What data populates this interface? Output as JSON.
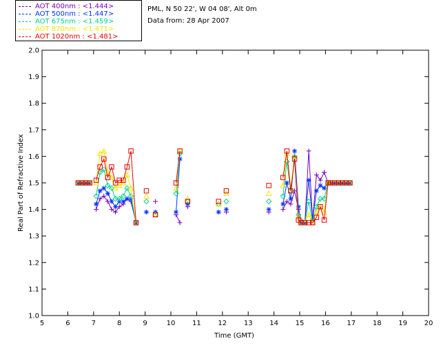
{
  "legend": [
    {
      "label": "AOT  400nm : <1.444>",
      "color": "#7a00b8"
    },
    {
      "label": "AOT  500nm : <1.447>",
      "color": "#0032ff"
    },
    {
      "label": "AOT  675nm : <1.459>",
      "color": "#00d28c"
    },
    {
      "label": "AOT  870nm : <1.471>",
      "color": "#f0e600"
    },
    {
      "label": "AOT 1020nm : <1.481>",
      "color": "#e60000"
    }
  ],
  "info": {
    "site": "PML, N 50 22', W 04 08', Alt 0m",
    "date": "Data from: 28 Apr 2007"
  },
  "chart_data": {
    "type": "line",
    "title": "",
    "xlabel": "Time (GMT)",
    "ylabel": "Real Part of Refractive Index",
    "xlim": [
      5,
      20
    ],
    "ylim": [
      1.0,
      2.0
    ],
    "xticks": [
      "5",
      "6",
      "7",
      "8",
      "9",
      "10",
      "11",
      "12",
      "13",
      "14",
      "15",
      "16",
      "17",
      "18",
      "19",
      "20"
    ],
    "yticks": [
      "1.0",
      "1.1",
      "1.2",
      "1.3",
      "1.4",
      "1.5",
      "1.6",
      "1.7",
      "1.8",
      "1.9",
      "2.0"
    ],
    "series": [
      {
        "name": "AOT  400nm : <1.444>",
        "color": "#7a00b8",
        "marker": "plus",
        "segments": [
          [
            [
              6.4,
              1.5
            ],
            [
              6.55,
              1.5
            ],
            [
              6.7,
              1.5
            ],
            [
              6.85,
              1.5
            ]
          ],
          [
            [
              7.1,
              1.4
            ],
            [
              7.25,
              1.44
            ],
            [
              7.4,
              1.45
            ],
            [
              7.55,
              1.43
            ],
            [
              7.7,
              1.4
            ],
            [
              7.85,
              1.39
            ],
            [
              8.0,
              1.41
            ],
            [
              8.15,
              1.42
            ],
            [
              8.3,
              1.44
            ],
            [
              8.45,
              1.43
            ],
            [
              8.65,
              1.35
            ]
          ],
          [
            [
              9.05,
              1.39
            ]
          ],
          [
            [
              9.4,
              1.43
            ]
          ],
          [
            [
              10.2,
              1.38
            ],
            [
              10.35,
              1.35
            ]
          ],
          [
            [
              10.65,
              1.41
            ]
          ],
          [
            [
              11.85,
              1.39
            ]
          ],
          [
            [
              12.15,
              1.39
            ]
          ],
          [
            [
              13.8,
              1.39
            ]
          ],
          [
            [
              14.35,
              1.4
            ],
            [
              14.5,
              1.43
            ],
            [
              14.65,
              1.42
            ],
            [
              14.8,
              1.47
            ],
            [
              14.95,
              1.4
            ],
            [
              15.05,
              1.36
            ],
            [
              15.2,
              1.35
            ],
            [
              15.35,
              1.62
            ],
            [
              15.5,
              1.36
            ],
            [
              15.65,
              1.53
            ],
            [
              15.8,
              1.51
            ],
            [
              15.95,
              1.54
            ],
            [
              16.1,
              1.5
            ],
            [
              16.2,
              1.5
            ],
            [
              16.35,
              1.5
            ],
            [
              16.5,
              1.5
            ],
            [
              16.65,
              1.5
            ],
            [
              16.8,
              1.5
            ],
            [
              16.95,
              1.5
            ]
          ]
        ]
      },
      {
        "name": "AOT  500nm : <1.447>",
        "color": "#0032ff",
        "marker": "star",
        "segments": [
          [
            [
              6.4,
              1.5
            ],
            [
              6.55,
              1.5
            ],
            [
              6.7,
              1.5
            ],
            [
              6.85,
              1.5
            ]
          ],
          [
            [
              7.1,
              1.42
            ],
            [
              7.25,
              1.47
            ],
            [
              7.4,
              1.48
            ],
            [
              7.55,
              1.46
            ],
            [
              7.7,
              1.43
            ],
            [
              7.85,
              1.41
            ],
            [
              8.0,
              1.43
            ],
            [
              8.15,
              1.43
            ],
            [
              8.3,
              1.44
            ],
            [
              8.45,
              1.44
            ],
            [
              8.65,
              1.35
            ]
          ],
          [
            [
              9.05,
              1.39
            ]
          ],
          [
            [
              9.4,
              1.39
            ]
          ],
          [
            [
              10.2,
              1.39
            ],
            [
              10.35,
              1.59
            ]
          ],
          [
            [
              10.65,
              1.42
            ]
          ],
          [
            [
              11.85,
              1.39
            ]
          ],
          [
            [
              12.15,
              1.4
            ]
          ],
          [
            [
              13.8,
              1.4
            ]
          ],
          [
            [
              14.35,
              1.42
            ],
            [
              14.5,
              1.5
            ],
            [
              14.65,
              1.44
            ],
            [
              14.8,
              1.62
            ],
            [
              14.95,
              1.41
            ],
            [
              15.05,
              1.35
            ],
            [
              15.2,
              1.35
            ],
            [
              15.35,
              1.51
            ],
            [
              15.5,
              1.36
            ],
            [
              15.65,
              1.47
            ],
            [
              15.8,
              1.49
            ],
            [
              15.95,
              1.48
            ],
            [
              16.1,
              1.5
            ],
            [
              16.2,
              1.5
            ],
            [
              16.35,
              1.5
            ],
            [
              16.5,
              1.5
            ],
            [
              16.65,
              1.5
            ],
            [
              16.8,
              1.5
            ],
            [
              16.95,
              1.5
            ]
          ]
        ]
      },
      {
        "name": "AOT  675nm : <1.459>",
        "color": "#00d28c",
        "marker": "diamond",
        "segments": [
          [
            [
              6.4,
              1.5
            ],
            [
              6.55,
              1.5
            ],
            [
              6.7,
              1.5
            ],
            [
              6.85,
              1.5
            ]
          ],
          [
            [
              7.1,
              1.45
            ],
            [
              7.25,
              1.54
            ],
            [
              7.4,
              1.55
            ],
            [
              7.55,
              1.49
            ],
            [
              7.7,
              1.48
            ],
            [
              7.85,
              1.44
            ],
            [
              8.0,
              1.44
            ],
            [
              8.15,
              1.45
            ],
            [
              8.3,
              1.48
            ],
            [
              8.45,
              1.45
            ],
            [
              8.65,
              1.35
            ]
          ],
          [
            [
              9.05,
              1.43
            ]
          ],
          [
            [
              9.4,
              1.38
            ]
          ],
          [
            [
              10.2,
              1.46
            ],
            [
              10.35,
              1.61
            ]
          ],
          [
            [
              10.65,
              1.43
            ]
          ],
          [
            [
              11.85,
              1.42
            ]
          ],
          [
            [
              12.15,
              1.43
            ]
          ],
          [
            [
              13.8,
              1.43
            ]
          ],
          [
            [
              14.35,
              1.45
            ],
            [
              14.5,
              1.58
            ],
            [
              14.65,
              1.47
            ],
            [
              14.8,
              1.6
            ],
            [
              14.95,
              1.38
            ],
            [
              15.05,
              1.35
            ],
            [
              15.2,
              1.35
            ],
            [
              15.35,
              1.43
            ],
            [
              15.5,
              1.35
            ],
            [
              15.65,
              1.41
            ],
            [
              15.8,
              1.44
            ],
            [
              15.95,
              1.44
            ],
            [
              16.1,
              1.5
            ],
            [
              16.2,
              1.5
            ],
            [
              16.35,
              1.5
            ],
            [
              16.5,
              1.5
            ],
            [
              16.65,
              1.5
            ],
            [
              16.8,
              1.5
            ],
            [
              16.95,
              1.5
            ]
          ]
        ]
      },
      {
        "name": "AOT  870nm : <1.471>",
        "color": "#f0e600",
        "marker": "triangle",
        "segments": [
          [
            [
              6.4,
              1.5
            ],
            [
              6.55,
              1.5
            ],
            [
              6.7,
              1.5
            ],
            [
              6.85,
              1.5
            ]
          ],
          [
            [
              7.1,
              1.5
            ],
            [
              7.25,
              1.61
            ],
            [
              7.4,
              1.62
            ],
            [
              7.55,
              1.54
            ],
            [
              7.7,
              1.52
            ],
            [
              7.85,
              1.48
            ],
            [
              8.0,
              1.49
            ],
            [
              8.15,
              1.5
            ],
            [
              8.3,
              1.53
            ],
            [
              8.45,
              1.48
            ],
            [
              8.65,
              1.35
            ]
          ],
          [
            [
              9.05,
              1.45
            ]
          ],
          [
            [
              9.4,
              1.38
            ]
          ],
          [
            [
              10.2,
              1.48
            ],
            [
              10.35,
              1.62
            ]
          ],
          [
            [
              10.65,
              1.44
            ]
          ],
          [
            [
              11.85,
              1.42
            ]
          ],
          [
            [
              12.15,
              1.46
            ]
          ],
          [
            [
              13.8,
              1.46
            ]
          ],
          [
            [
              14.35,
              1.49
            ],
            [
              14.5,
              1.61
            ],
            [
              14.65,
              1.48
            ],
            [
              14.8,
              1.6
            ],
            [
              14.95,
              1.37
            ],
            [
              15.05,
              1.35
            ],
            [
              15.2,
              1.35
            ],
            [
              15.35,
              1.38
            ],
            [
              15.5,
              1.35
            ],
            [
              15.65,
              1.39
            ],
            [
              15.8,
              1.41
            ],
            [
              15.95,
              1.39
            ],
            [
              16.1,
              1.5
            ],
            [
              16.2,
              1.5
            ],
            [
              16.35,
              1.5
            ],
            [
              16.5,
              1.5
            ],
            [
              16.65,
              1.5
            ],
            [
              16.8,
              1.5
            ],
            [
              16.95,
              1.5
            ]
          ]
        ]
      },
      {
        "name": "AOT 1020nm : <1.481>",
        "color": "#e60000",
        "marker": "square",
        "segments": [
          [
            [
              6.4,
              1.5
            ],
            [
              6.55,
              1.5
            ],
            [
              6.7,
              1.5
            ],
            [
              6.85,
              1.5
            ]
          ],
          [
            [
              7.1,
              1.51
            ],
            [
              7.25,
              1.56
            ],
            [
              7.4,
              1.59
            ],
            [
              7.55,
              1.52
            ],
            [
              7.7,
              1.56
            ],
            [
              7.85,
              1.5
            ],
            [
              8.0,
              1.51
            ],
            [
              8.15,
              1.51
            ],
            [
              8.3,
              1.56
            ],
            [
              8.45,
              1.62
            ],
            [
              8.65,
              1.35
            ]
          ],
          [
            [
              9.05,
              1.47
            ]
          ],
          [
            [
              9.4,
              1.38
            ]
          ],
          [
            [
              10.2,
              1.5
            ],
            [
              10.35,
              1.62
            ]
          ],
          [
            [
              10.65,
              1.43
            ]
          ],
          [
            [
              11.85,
              1.43
            ]
          ],
          [
            [
              12.15,
              1.47
            ]
          ],
          [
            [
              13.8,
              1.49
            ]
          ],
          [
            [
              14.35,
              1.52
            ],
            [
              14.5,
              1.62
            ],
            [
              14.65,
              1.47
            ],
            [
              14.8,
              1.59
            ],
            [
              14.95,
              1.36
            ],
            [
              15.05,
              1.35
            ],
            [
              15.2,
              1.35
            ],
            [
              15.35,
              1.35
            ],
            [
              15.5,
              1.35
            ],
            [
              15.65,
              1.37
            ],
            [
              15.8,
              1.41
            ],
            [
              15.95,
              1.36
            ],
            [
              16.1,
              1.5
            ],
            [
              16.2,
              1.5
            ],
            [
              16.35,
              1.5
            ],
            [
              16.5,
              1.5
            ],
            [
              16.65,
              1.5
            ],
            [
              16.8,
              1.5
            ],
            [
              16.95,
              1.5
            ]
          ]
        ]
      }
    ]
  }
}
